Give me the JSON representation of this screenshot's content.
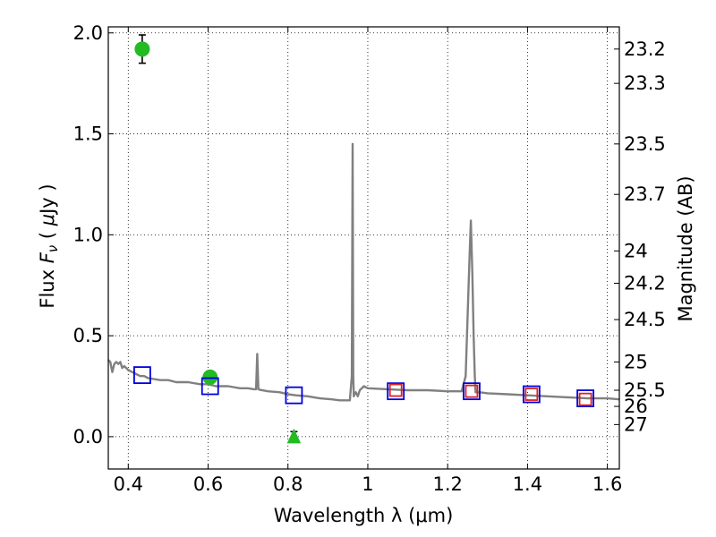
{
  "chart_data": {
    "type": "scatter",
    "xlabel": "Wavelength  λ (μm)",
    "ylabel_parts": [
      "Flux  ",
      "F",
      "ν",
      "  ( ",
      "μ",
      "Jy )"
    ],
    "ylabel_right": "Magnitude (AB)",
    "xlim": [
      0.35,
      1.63
    ],
    "ylim": [
      -0.16,
      2.03
    ],
    "grid": true,
    "x_ticks": [
      {
        "value": 0.4,
        "label": "0.4"
      },
      {
        "value": 0.6,
        "label": "0.6"
      },
      {
        "value": 0.8,
        "label": "0.8"
      },
      {
        "value": 1.0,
        "label": "1"
      },
      {
        "value": 1.2,
        "label": "1.2"
      },
      {
        "value": 1.4,
        "label": "1.4"
      },
      {
        "value": 1.6,
        "label": "1.6"
      }
    ],
    "y_ticks": [
      {
        "value": 0.0,
        "label": "0.0"
      },
      {
        "value": 0.5,
        "label": "0.5"
      },
      {
        "value": 1.0,
        "label": "1.0"
      },
      {
        "value": 1.5,
        "label": "1.5"
      },
      {
        "value": 2.0,
        "label": "2.0"
      }
    ],
    "magnitude_ticks": [
      {
        "flux": 1.92,
        "label": "23.2"
      },
      {
        "flux": 1.75,
        "label": "23.3"
      },
      {
        "flux": 1.45,
        "label": "23.5"
      },
      {
        "flux": 1.2,
        "label": "23.7"
      },
      {
        "flux": 0.92,
        "label": "24"
      },
      {
        "flux": 0.76,
        "label": "24.2"
      },
      {
        "flux": 0.58,
        "label": "24.5"
      },
      {
        "flux": 0.37,
        "label": "25"
      },
      {
        "flux": 0.23,
        "label": "25.5"
      },
      {
        "flux": 0.15,
        "label": "26"
      },
      {
        "flux": 0.06,
        "label": "27"
      }
    ],
    "model_spectrum": {
      "color": "#808080",
      "x": [
        0.35,
        0.355,
        0.36,
        0.365,
        0.37,
        0.375,
        0.38,
        0.385,
        0.39,
        0.395,
        0.4,
        0.41,
        0.42,
        0.43,
        0.44,
        0.45,
        0.48,
        0.5,
        0.52,
        0.55,
        0.58,
        0.6,
        0.62,
        0.65,
        0.68,
        0.7,
        0.715,
        0.72,
        0.723,
        0.726,
        0.73,
        0.75,
        0.78,
        0.8,
        0.82,
        0.85,
        0.88,
        0.91,
        0.93,
        0.945,
        0.955,
        0.96,
        0.962,
        0.9635,
        0.965,
        0.967,
        0.97,
        0.975,
        0.98,
        0.985,
        0.99,
        1.0,
        1.05,
        1.1,
        1.15,
        1.2,
        1.235,
        1.245,
        1.25,
        1.255,
        1.258,
        1.262,
        1.265,
        1.268,
        1.27,
        1.28,
        1.3,
        1.35,
        1.4,
        1.45,
        1.5,
        1.55,
        1.6,
        1.63
      ],
      "y": [
        0.38,
        0.37,
        0.32,
        0.36,
        0.37,
        0.36,
        0.37,
        0.34,
        0.35,
        0.34,
        0.33,
        0.32,
        0.31,
        0.3,
        0.3,
        0.29,
        0.28,
        0.28,
        0.27,
        0.27,
        0.26,
        0.26,
        0.25,
        0.25,
        0.24,
        0.24,
        0.235,
        0.235,
        0.41,
        0.235,
        0.232,
        0.225,
        0.22,
        0.21,
        0.205,
        0.2,
        0.19,
        0.185,
        0.18,
        0.18,
        0.18,
        0.3,
        1.45,
        0.3,
        0.2,
        0.21,
        0.22,
        0.2,
        0.23,
        0.24,
        0.25,
        0.24,
        0.235,
        0.23,
        0.23,
        0.225,
        0.225,
        0.3,
        0.6,
        0.9,
        1.07,
        0.8,
        0.5,
        0.3,
        0.22,
        0.22,
        0.215,
        0.21,
        0.205,
        0.2,
        0.195,
        0.19,
        0.19,
        0.185
      ]
    },
    "series": [
      {
        "marker": "circle",
        "color": "#22bb22",
        "points": [
          {
            "x": 0.435,
            "y": 1.92,
            "err": 0.07
          },
          {
            "x": 0.605,
            "y": 0.295,
            "err": 0.025
          }
        ]
      },
      {
        "marker": "triangle",
        "color": "#22bb22",
        "points": [
          {
            "x": 0.815,
            "y": 0.0,
            "err": 0.025
          }
        ]
      },
      {
        "marker": "open-square",
        "color": "#0000dd",
        "points": [
          {
            "x": 0.435,
            "y": 0.305
          },
          {
            "x": 0.605,
            "y": 0.25
          },
          {
            "x": 0.815,
            "y": 0.205
          },
          {
            "x": 1.07,
            "y": 0.225
          },
          {
            "x": 1.26,
            "y": 0.225
          },
          {
            "x": 1.41,
            "y": 0.21
          },
          {
            "x": 1.545,
            "y": 0.19
          }
        ]
      },
      {
        "marker": "open-square",
        "color": "#dd2222",
        "points": [
          {
            "x": 1.07,
            "y": 0.23
          },
          {
            "x": 1.26,
            "y": 0.225
          },
          {
            "x": 1.41,
            "y": 0.21
          },
          {
            "x": 1.545,
            "y": 0.185
          }
        ]
      }
    ]
  }
}
